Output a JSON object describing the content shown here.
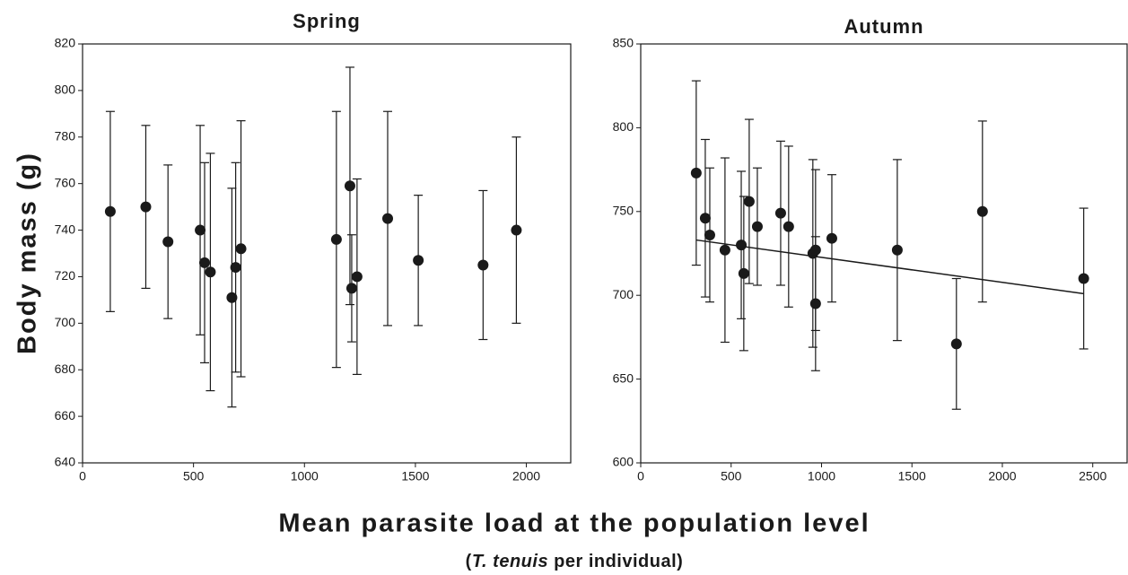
{
  "ylabel": "Body mass (g)",
  "xlabel": "Mean parasite load at the population level",
  "xlabel_note": [
    "(",
    "T. tenuis",
    " per individual)"
  ],
  "chart_data": [
    {
      "type": "scatter",
      "title": "Spring",
      "x": [
        125,
        285,
        385,
        530,
        550,
        576,
        673,
        690,
        714,
        1144,
        1205,
        1213,
        1237,
        1375,
        1513,
        1805,
        1955
      ],
      "values": [
        748,
        750,
        735,
        740,
        726,
        722,
        711,
        724,
        732,
        736,
        759,
        715,
        720,
        745,
        727,
        725,
        740
      ],
      "errors": [
        43,
        35,
        33,
        45,
        43,
        51,
        47,
        45,
        55,
        55,
        51,
        23,
        42,
        46,
        28,
        32,
        40
      ],
      "color": "#1a1a1a",
      "xlim": [
        0,
        2200
      ],
      "xticks": [
        0,
        500,
        1000,
        1500,
        2000
      ],
      "ylim": [
        640,
        820
      ],
      "yticks": [
        640,
        660,
        680,
        700,
        720,
        740,
        760,
        780,
        800,
        820
      ]
    },
    {
      "type": "scatter",
      "title": "Autumn",
      "x": [
        307,
        357,
        382,
        466,
        556,
        570,
        600,
        645,
        774,
        818,
        952,
        967,
        967,
        1057,
        1419,
        1746,
        1890,
        2450
      ],
      "values": [
        773,
        746,
        736,
        727,
        730,
        713,
        756,
        741,
        749,
        741,
        725,
        727,
        695,
        734,
        727,
        671,
        750,
        710
      ],
      "errors": [
        55,
        47,
        40,
        55,
        44,
        46,
        49,
        35,
        43,
        48,
        56,
        48,
        40,
        38,
        54,
        39,
        54,
        42
      ],
      "color": "#1a1a1a",
      "trend": {
        "x": [
          307,
          2450
        ],
        "y": [
          733,
          701
        ]
      },
      "xlim": [
        0,
        2690
      ],
      "xticks": [
        0,
        500,
        1000,
        1500,
        2000,
        2500
      ],
      "ylim": [
        600,
        850
      ],
      "yticks": [
        600,
        650,
        700,
        750,
        800,
        850
      ]
    }
  ]
}
